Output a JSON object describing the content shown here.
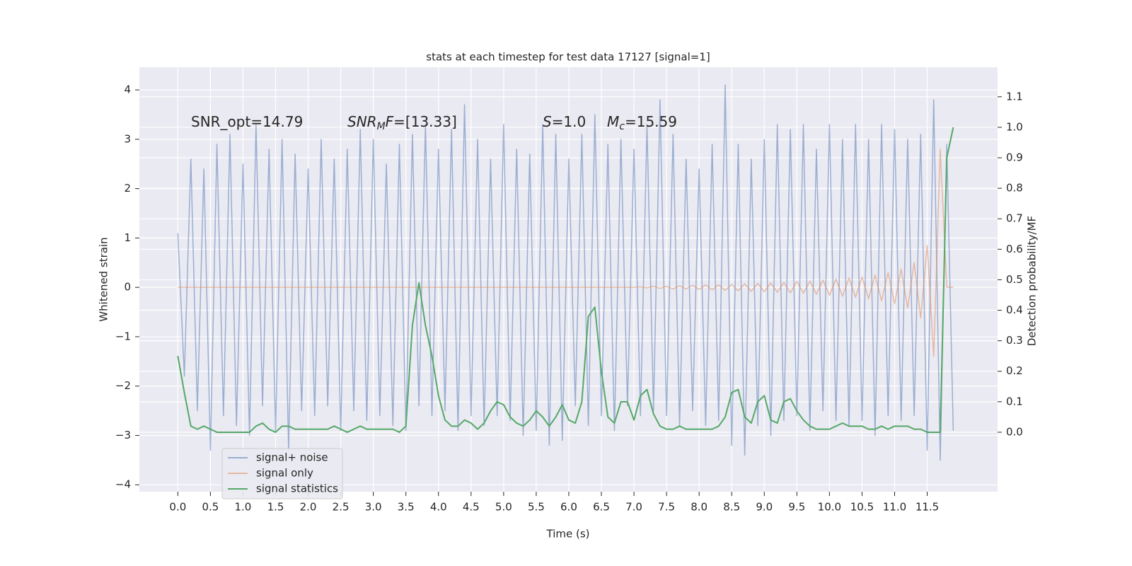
{
  "chart_data": {
    "type": "line",
    "title": "stats at each timestep for test data 17127 [signal=1]",
    "xlabel": "Time (s)",
    "ylabel": "Whitened strain",
    "y2label": "Detection probability/MF",
    "annotations": [
      {
        "parts": [
          {
            "text": "SNR_opt=14.79"
          }
        ]
      },
      {
        "parts": [
          {
            "text": "SNR",
            "style": "italic"
          },
          {
            "text": "M",
            "style": "sub"
          },
          {
            "text": "F",
            "style": "italic"
          },
          {
            "text": "=[13.33]"
          }
        ]
      },
      {
        "parts": [
          {
            "text": "S",
            "style": "italic"
          },
          {
            "text": "=1.0"
          }
        ]
      },
      {
        "parts": [
          {
            "text": "M",
            "style": "italic"
          },
          {
            "text": "c",
            "style": "sub"
          },
          {
            "text": "=15.59"
          }
        ]
      }
    ],
    "grid": true,
    "legend": "lower left",
    "x": [
      0,
      0.1,
      0.2,
      0.3,
      0.4,
      0.5,
      0.6,
      0.7,
      0.8,
      0.9,
      1,
      1.1,
      1.2,
      1.3,
      1.4,
      1.5,
      1.6,
      1.7,
      1.8,
      1.9,
      2,
      2.1,
      2.2,
      2.3,
      2.4,
      2.5,
      2.6,
      2.7,
      2.8,
      2.9,
      3,
      3.1,
      3.2,
      3.3,
      3.4,
      3.5,
      3.6,
      3.7,
      3.8,
      3.9,
      4,
      4.1,
      4.2,
      4.3,
      4.4,
      4.5,
      4.6,
      4.7,
      4.8,
      4.9,
      5,
      5.1,
      5.2,
      5.3,
      5.4,
      5.5,
      5.6,
      5.7,
      5.8,
      5.9,
      6,
      6.1,
      6.2,
      6.3,
      6.4,
      6.5,
      6.6,
      6.7,
      6.8,
      6.9,
      7,
      7.1,
      7.2,
      7.3,
      7.4,
      7.5,
      7.6,
      7.7,
      7.8,
      7.9,
      8,
      8.1,
      8.2,
      8.3,
      8.4,
      8.5,
      8.6,
      8.7,
      8.8,
      8.9,
      9,
      9.1,
      9.2,
      9.3,
      9.4,
      9.5,
      9.6,
      9.7,
      9.8,
      9.9,
      10,
      10.1,
      10.2,
      10.3,
      10.4,
      10.5,
      10.6,
      10.7,
      10.8,
      10.9,
      11,
      11.1,
      11.2,
      11.3,
      11.4,
      11.5,
      11.6,
      11.7,
      11.8,
      11.9
    ],
    "series": [
      {
        "name": "signal+ noise",
        "color": "#4c72b0",
        "opacity": 0.5,
        "axis": "y",
        "values": [
          1.1,
          -1.8,
          2.6,
          -2.5,
          2.4,
          -3.3,
          2.9,
          -2.6,
          3.1,
          -2.8,
          2.5,
          -3.0,
          3.3,
          -2.4,
          2.8,
          -2.9,
          3.0,
          -3.3,
          2.7,
          -2.5,
          2.4,
          -2.6,
          3.0,
          -2.4,
          2.6,
          -2.9,
          2.8,
          -2.5,
          3.2,
          -2.7,
          3.0,
          -2.6,
          2.5,
          -2.8,
          2.9,
          -2.9,
          3.1,
          -2.4,
          3.3,
          -2.6,
          2.8,
          -2.5,
          3.2,
          -2.9,
          3.7,
          -2.6,
          3.0,
          -2.8,
          2.6,
          -2.6,
          3.3,
          -2.7,
          2.8,
          -3.0,
          2.7,
          -2.9,
          3.3,
          -3.2,
          3.1,
          -3.1,
          2.6,
          -2.4,
          3.1,
          -2.8,
          3.5,
          -2.6,
          2.9,
          -2.9,
          3.0,
          -2.4,
          2.8,
          -2.6,
          3.3,
          -2.5,
          3.8,
          -2.6,
          3.1,
          -2.8,
          2.6,
          -2.5,
          2.4,
          -2.8,
          2.9,
          -2.7,
          4.1,
          -3.2,
          2.9,
          -3.4,
          2.6,
          -2.8,
          3.0,
          -3.0,
          3.3,
          -2.7,
          3.2,
          -2.6,
          3.3,
          -2.9,
          2.8,
          -2.5,
          3.3,
          -2.7,
          3.0,
          -2.8,
          3.3,
          -2.7,
          3.0,
          -3.0,
          3.3,
          -2.6,
          3.2,
          -2.7,
          3.0,
          -2.6,
          3.1,
          -3.3,
          3.8,
          -3.5,
          2.9,
          -2.9
        ]
      },
      {
        "name": "signal only",
        "color": "#dd8452",
        "opacity": 0.5,
        "axis": "y",
        "values": [
          0,
          0,
          0,
          0,
          0,
          0,
          0,
          0,
          0,
          0,
          0,
          0,
          0,
          0,
          0,
          0,
          0,
          0,
          0,
          0,
          0,
          0,
          0,
          0,
          0,
          0,
          0,
          0,
          0,
          0,
          0,
          0,
          0,
          0,
          0,
          0,
          0,
          0,
          0,
          0,
          0,
          0,
          0,
          0,
          0,
          0,
          0,
          0,
          0,
          0,
          0,
          0,
          0,
          0,
          0,
          0,
          0,
          0,
          0,
          0,
          0,
          0,
          0,
          0,
          0,
          0,
          0,
          0,
          0,
          0,
          0,
          0.01,
          -0.01,
          0.02,
          -0.02,
          0.02,
          -0.03,
          0.03,
          -0.03,
          0.04,
          -0.04,
          0.05,
          -0.05,
          0.05,
          -0.06,
          0.06,
          -0.07,
          0.07,
          -0.08,
          0.08,
          -0.09,
          0.09,
          -0.1,
          0.1,
          -0.11,
          0.12,
          -0.12,
          0.13,
          -0.14,
          0.15,
          -0.16,
          0.17,
          -0.18,
          0.19,
          -0.2,
          0.21,
          -0.23,
          0.25,
          -0.27,
          0.3,
          -0.33,
          0.37,
          -0.42,
          0.5,
          -0.62,
          0.85,
          -1.4,
          2.8,
          0,
          0
        ]
      },
      {
        "name": "signal statistics",
        "color": "#55a868",
        "opacity": 1,
        "axis": "y2",
        "values": [
          0.25,
          0.13,
          0.02,
          0.01,
          0.02,
          0.01,
          0,
          0,
          0,
          0,
          0,
          0,
          0.02,
          0.03,
          0.01,
          0,
          0.02,
          0.02,
          0.01,
          0.01,
          0.01,
          0.01,
          0.01,
          0.01,
          0.02,
          0.01,
          0,
          0.01,
          0.02,
          0.01,
          0.01,
          0.01,
          0.01,
          0.01,
          0,
          0.02,
          0.35,
          0.49,
          0.35,
          0.25,
          0.12,
          0.04,
          0.02,
          0.02,
          0.04,
          0.03,
          0.01,
          0.03,
          0.07,
          0.1,
          0.09,
          0.05,
          0.03,
          0.02,
          0.04,
          0.07,
          0.05,
          0.02,
          0.05,
          0.09,
          0.04,
          0.03,
          0.1,
          0.38,
          0.41,
          0.2,
          0.05,
          0.03,
          0.1,
          0.1,
          0.04,
          0.12,
          0.14,
          0.06,
          0.02,
          0.01,
          0.01,
          0.02,
          0.01,
          0.01,
          0.01,
          0.01,
          0.01,
          0.02,
          0.05,
          0.13,
          0.14,
          0.05,
          0.03,
          0.1,
          0.12,
          0.04,
          0.03,
          0.1,
          0.11,
          0.07,
          0.04,
          0.02,
          0.01,
          0.01,
          0.01,
          0.02,
          0.03,
          0.02,
          0.02,
          0.02,
          0.01,
          0.01,
          0.02,
          0.01,
          0.02,
          0.02,
          0.02,
          0.01,
          0.01,
          0,
          0,
          0,
          0.9,
          1.0
        ]
      }
    ],
    "xlim": [
      -0.59,
      12.58
    ],
    "ylim": [
      -4.14,
      4.46
    ],
    "y2lim": [
      -0.195,
      1.197
    ],
    "xticks": [
      {
        "value": 0,
        "label": "0.0"
      },
      {
        "value": 0.5,
        "label": "0.5"
      },
      {
        "value": 1,
        "label": "1.0"
      },
      {
        "value": 1.5,
        "label": "1.5"
      },
      {
        "value": 2,
        "label": "2.0"
      },
      {
        "value": 2.5,
        "label": "2.5"
      },
      {
        "value": 3,
        "label": "3.0"
      },
      {
        "value": 3.5,
        "label": "3.5"
      },
      {
        "value": 4,
        "label": "4.0"
      },
      {
        "value": 4.5,
        "label": "4.5"
      },
      {
        "value": 5,
        "label": "5.0"
      },
      {
        "value": 5.5,
        "label": "5.5"
      },
      {
        "value": 6,
        "label": "6.0"
      },
      {
        "value": 6.5,
        "label": "6.5"
      },
      {
        "value": 7,
        "label": "7.0"
      },
      {
        "value": 7.5,
        "label": "7.5"
      },
      {
        "value": 8,
        "label": "8.0"
      },
      {
        "value": 8.5,
        "label": "8.5"
      },
      {
        "value": 9,
        "label": "9.0"
      },
      {
        "value": 9.5,
        "label": "9.5"
      },
      {
        "value": 10,
        "label": "10.0"
      },
      {
        "value": 10.5,
        "label": "10.5"
      },
      {
        "value": 11,
        "label": "11.0"
      },
      {
        "value": 11.5,
        "label": "11.5"
      }
    ],
    "yticks": [
      {
        "value": -4,
        "label": "−4"
      },
      {
        "value": -3,
        "label": "−3"
      },
      {
        "value": -2,
        "label": "−2"
      },
      {
        "value": -1,
        "label": "−1"
      },
      0,
      1,
      2,
      3,
      4
    ],
    "y2ticks": [
      {
        "value": 0,
        "label": "0.0"
      },
      {
        "value": 0.1,
        "label": "0.1"
      },
      {
        "value": 0.2,
        "label": "0.2"
      },
      {
        "value": 0.3,
        "label": "0.3"
      },
      {
        "value": 0.4,
        "label": "0.4"
      },
      {
        "value": 0.5,
        "label": "0.5"
      },
      {
        "value": 0.6,
        "label": "0.6"
      },
      {
        "value": 0.7,
        "label": "0.7"
      },
      {
        "value": 0.8,
        "label": "0.8"
      },
      {
        "value": 0.9,
        "label": "0.9"
      },
      {
        "value": 1,
        "label": "1.0"
      },
      {
        "value": 1.1,
        "label": "1.1"
      }
    ]
  }
}
